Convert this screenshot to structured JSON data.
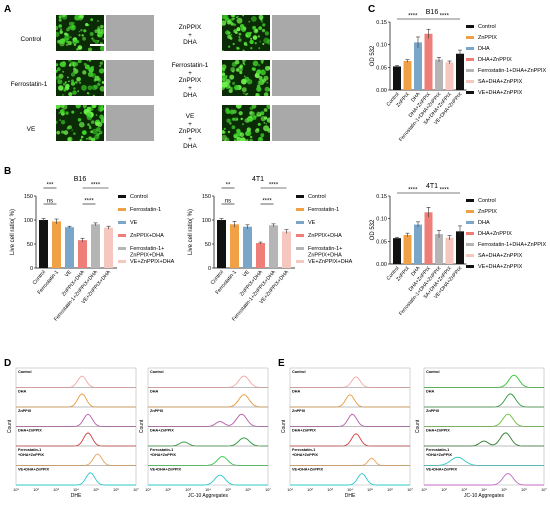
{
  "panels": {
    "a": "A",
    "b": "B",
    "c": "C",
    "d": "D",
    "e": "E"
  },
  "panel_a": {
    "left_labels": [
      "Control",
      "Ferrostatin-1",
      "VE"
    ],
    "right_labels": [
      [
        "ZnPPIX",
        "+",
        "DHA"
      ],
      [
        "Ferrostatin-1",
        "+",
        "ZnPPIX",
        "+",
        "DHA"
      ],
      [
        "VE",
        "+",
        "ZnPPIX",
        "+",
        "DHA"
      ]
    ]
  },
  "chart_data": [
    {
      "type": "bar",
      "title": "B16",
      "ylabel": "Live cell ratio( %)",
      "ylim": [
        0,
        150
      ],
      "yticks": [
        "0",
        "50",
        "100",
        "150"
      ],
      "categories": [
        "Control",
        "Ferrostatin-1",
        "VE",
        "ZnPPIX+DHA",
        "Ferrostatin-1+ZnPPIX+DHA",
        "VE+ZnPPIX+DHA"
      ],
      "values": [
        100,
        97,
        85,
        58,
        91,
        84
      ],
      "errors": [
        3,
        5,
        2,
        4,
        3,
        3
      ],
      "legend": [
        "Control",
        "Ferrostatin-1",
        "VE",
        "ZnPPIX+DHA",
        "Ferrostatin-1+\nZnPPIX+DHA",
        "VE+ZnPPIX+DHA"
      ],
      "significance": [
        "ns",
        "***",
        "****",
        "****"
      ],
      "colors": [
        "#111111",
        "#f0a045",
        "#7aa6c9",
        "#ef7e78",
        "#b5b5b5",
        "#f6c7bf"
      ]
    },
    {
      "type": "bar",
      "title": "4T1",
      "ylabel": "Live cell ratio( %)",
      "ylim": [
        0,
        150
      ],
      "yticks": [
        "0",
        "50",
        "100",
        "150"
      ],
      "categories": [
        "Control",
        "Ferrostatin-1",
        "VE",
        "ZnPPIX+DHA",
        "Ferrostatin-1+ZnPPIX+DHA",
        "VE+ZnPPIX+DHA"
      ],
      "values": [
        100,
        91,
        86,
        52,
        89,
        76
      ],
      "errors": [
        3,
        6,
        4,
        2,
        3,
        4
      ],
      "legend": [
        "Control",
        "Ferrostatin-1",
        "VE",
        "ZnPPIX+DHA",
        "Ferrostatin-1+\nZnPPIX+DHA",
        "VE+ZnPPIX+DHA"
      ],
      "significance": [
        "ns",
        "**",
        "****",
        "****"
      ],
      "colors": [
        "#111111",
        "#f0a045",
        "#7aa6c9",
        "#ef7e78",
        "#b5b5b5",
        "#f6c7bf"
      ]
    },
    {
      "type": "bar",
      "title": "B16",
      "ylabel": "OD 532",
      "ylim": [
        0,
        0.15
      ],
      "yticks": [
        "0.00",
        "0.05",
        "0.10",
        "0.15"
      ],
      "categories": [
        "Control",
        "ZnPPIX",
        "DHA",
        "DHA+ZnPPIX",
        "Ferrostatin-1+DHA+ZnPPIX",
        "SA+DHA+ZnPPIX",
        "VE+DHA+ZnPPIX"
      ],
      "values": [
        0.052,
        0.064,
        0.105,
        0.124,
        0.067,
        0.061,
        0.08
      ],
      "errors": [
        0.002,
        0.003,
        0.012,
        0.01,
        0.005,
        0.003,
        0.008
      ],
      "legend": [
        "Control",
        "ZnPPIX",
        "DHA",
        "DHA+ZnPPIX",
        "Ferrostatin-1+DHA+ZnPPIX",
        "SA+DHA+ZnPPIX",
        "VE+DHA+ZnPPIX"
      ],
      "significance": [
        "****",
        "****"
      ],
      "colors": [
        "#111111",
        "#f0a045",
        "#7aa6c9",
        "#ef7e78",
        "#b5b5b5",
        "#f6c7bf",
        "#111111"
      ]
    },
    {
      "type": "bar",
      "title": "4T1",
      "ylabel": "OD 532",
      "ylim": [
        0,
        0.15
      ],
      "yticks": [
        "0.00",
        "0.05",
        "0.10",
        "0.15"
      ],
      "categories": [
        "Control",
        "ZnPPIX",
        "DHA",
        "DHA+ZnPPIX",
        "Ferrostatin-1+DHA+ZnPPIX",
        "SA+DHA+ZnPPIX",
        "VE+DHA+ZnPPIX"
      ],
      "values": [
        0.057,
        0.064,
        0.087,
        0.114,
        0.066,
        0.058,
        0.072
      ],
      "errors": [
        0.002,
        0.004,
        0.006,
        0.011,
        0.008,
        0.005,
        0.012
      ],
      "legend": [
        "Control",
        "ZnPPIX",
        "DHA",
        "DHA+ZnPPIX",
        "Ferrostatin-1+DHA+ZnPPIX",
        "SA+DHA+ZnPPIX",
        "VE+DHA+ZnPPIX"
      ],
      "significance": [
        "****",
        "****"
      ],
      "colors": [
        "#111111",
        "#f0a045",
        "#7aa6c9",
        "#ef7e78",
        "#b5b5b5",
        "#f6c7bf",
        "#111111"
      ]
    }
  ],
  "flow": {
    "ylabel": "Count",
    "dhe_xlabel": "DHE",
    "jc_xlabel": "JC-10 Aggregates",
    "x_ticks": [
      "10¹",
      "10²",
      "10³",
      "10⁴",
      "10⁵",
      "10⁶",
      "10⁷"
    ],
    "rows": [
      "Control",
      "DHA",
      "ZnPPIX",
      "DHA+ZnPPIX",
      "Ferrostatin-1\n+DHA+ZnPPIX",
      "VE+DHA+ZnPPIX"
    ],
    "colors": [
      "#f2a6a6",
      "#e89a3c",
      "#b35aa8",
      "#d23c3c",
      "#e8a35a",
      "#2fc9c9"
    ],
    "jc_colors": [
      "#f2a6a6",
      "#e89a3c",
      "#b35aa8",
      "#2e9a3a",
      "#33c94a",
      "#2fc9c9"
    ],
    "e_jc_colors": [
      "#2fc42f",
      "#2e9a3a",
      "#6abf3a",
      "#2e7a2e",
      "#2fc9c9",
      "#c36ac3"
    ],
    "e_dhe_colors": [
      "#f2a6a6",
      "#e89a3c",
      "#b35aa8",
      "#d23c3c",
      "#e8a35a",
      "#2fc9c9"
    ]
  }
}
